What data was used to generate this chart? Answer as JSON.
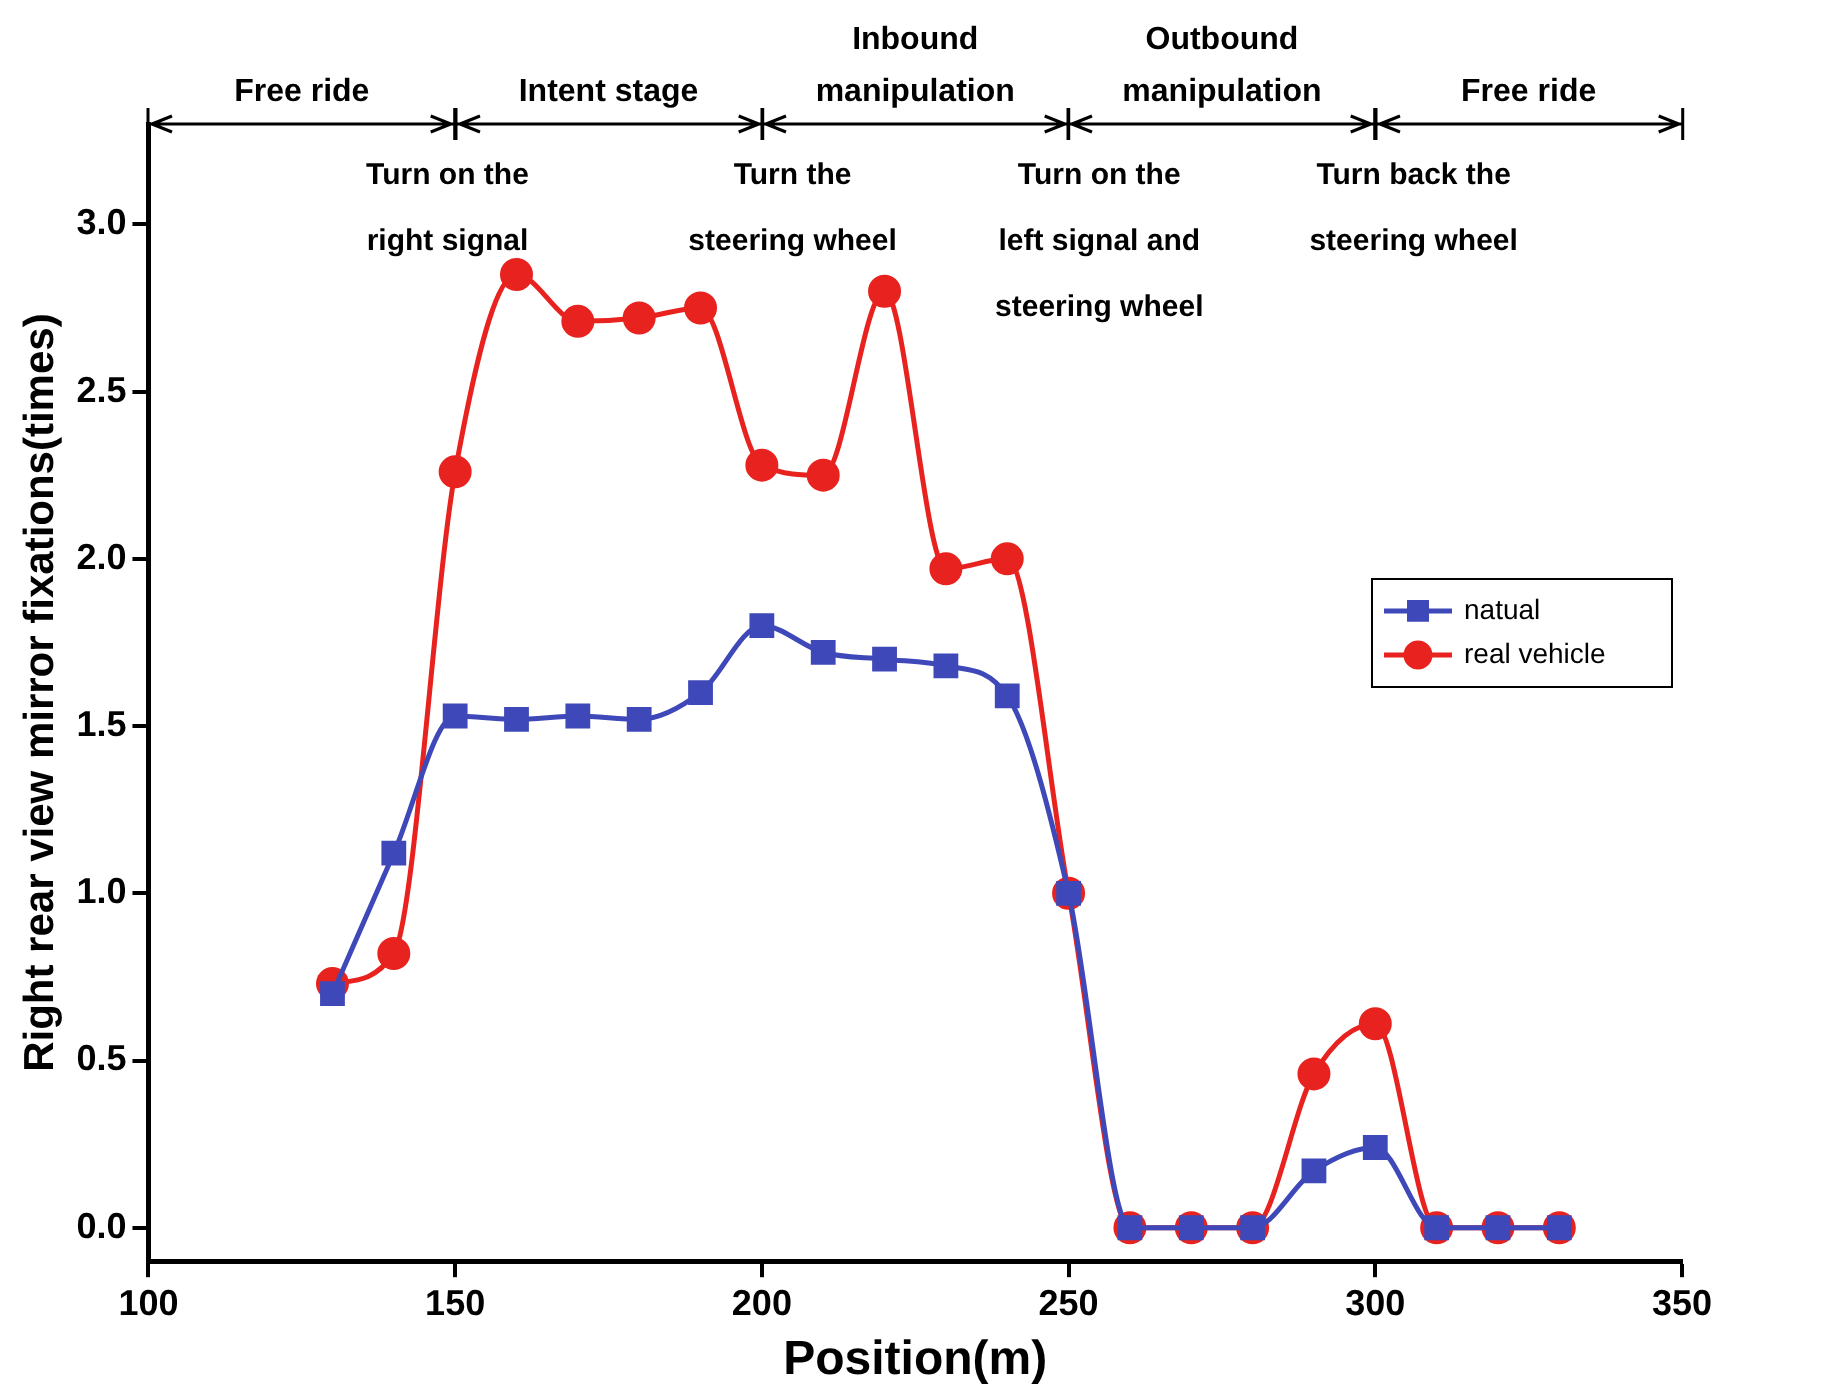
{
  "chart_data": {
    "type": "line",
    "xlabel": "Position(m)",
    "ylabel": "Right rear view mirror fixations(times)",
    "x": [
      130,
      140,
      150,
      160,
      170,
      180,
      190,
      200,
      210,
      220,
      230,
      240,
      250,
      260,
      270,
      280,
      290,
      300,
      310,
      320,
      330
    ],
    "series": [
      {
        "name": "natual",
        "color": "#3f48b8",
        "marker": "square",
        "values": [
          0.7,
          1.12,
          1.53,
          1.52,
          1.53,
          1.52,
          1.6,
          1.8,
          1.72,
          1.7,
          1.68,
          1.59,
          1.0,
          0,
          0,
          0,
          0.17,
          0.24,
          0,
          0,
          0
        ]
      },
      {
        "name": "real vehicle",
        "color": "#e8231f",
        "marker": "circle",
        "values": [
          0.73,
          0.82,
          2.26,
          2.85,
          2.71,
          2.72,
          2.75,
          2.28,
          2.25,
          2.8,
          1.97,
          2.0,
          1.0,
          0,
          0,
          0,
          0.46,
          0.61,
          0,
          0,
          0
        ]
      }
    ],
    "xlim": [
      100,
      350
    ],
    "xticks": [
      100,
      150,
      200,
      250,
      300,
      350
    ],
    "ylim": [
      -0.1,
      3.3
    ],
    "yticks": [
      {
        "value": 0,
        "label": "0.0"
      },
      {
        "value": 0.5,
        "label": "0.5"
      },
      {
        "value": 1,
        "label": "1.0"
      },
      {
        "value": 1.5,
        "label": "1.5"
      },
      {
        "value": 2,
        "label": "2.0"
      },
      {
        "value": 2.5,
        "label": "2.5"
      },
      {
        "value": 3,
        "label": "3.0"
      }
    ],
    "annotations": [
      "Free ride",
      "Intent stage",
      "Inbound\nmanipulation",
      "Outbound\nmanipulation",
      "Free ride",
      "Turn on the\nright signal",
      "Turn the\nsteering wheel",
      "Turn on the\nleft signal and\nsteering wheel",
      "Turn back the\nsteering wheel"
    ],
    "grid": false,
    "legend": "right"
  }
}
